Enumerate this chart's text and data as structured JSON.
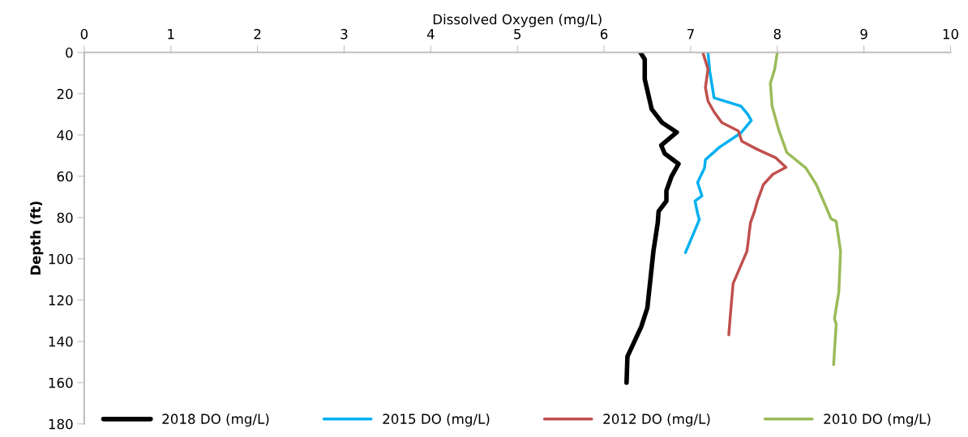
{
  "chart_data": {
    "type": "line",
    "xlabel": "Dissolved Oxygen (mg/L)",
    "ylabel": "Depth (ft)",
    "xlim": [
      0,
      10
    ],
    "xticks": [
      0,
      1,
      2,
      3,
      4,
      5,
      6,
      7,
      8,
      9,
      10
    ],
    "ylim": [
      180,
      0
    ],
    "yticks": [
      0,
      20,
      40,
      60,
      80,
      100,
      120,
      140,
      160,
      180
    ],
    "grid": false,
    "legend": "bottom",
    "marker": "none",
    "line_style": "solid",
    "series": [
      {
        "name": "2018 DO (mg/L)",
        "color": "#000000",
        "x": [
          6.42,
          6.47,
          6.47,
          6.52,
          6.55,
          6.67,
          6.84,
          6.66,
          6.7,
          6.86,
          6.78,
          6.72,
          6.72,
          6.63,
          6.62,
          6.57,
          6.5,
          6.43,
          6.27,
          6.26
        ],
        "values": [
          0,
          3.3,
          13,
          22,
          27.5,
          34,
          38.7,
          45,
          49,
          54,
          60,
          67,
          72,
          77,
          82.6,
          96.3,
          123.8,
          132.9,
          147.4,
          160
        ]
      },
      {
        "name": "2015 DO (mg/L)",
        "color": "#00b0f0",
        "x": [
          7.2,
          7.22,
          7.27,
          7.58,
          7.66,
          7.7,
          7.58,
          7.33,
          7.17,
          7.16,
          7.08,
          7.13,
          7.05,
          7.08,
          7.1,
          6.94
        ],
        "values": [
          0,
          9,
          22,
          26,
          30,
          33,
          39,
          46,
          52,
          56,
          63,
          69.5,
          72,
          78,
          81,
          97
        ]
      },
      {
        "name": "2012 DO (mg/L)",
        "color": "#c0504d",
        "x": [
          7.14,
          7.2,
          7.17,
          7.2,
          7.27,
          7.36,
          7.55,
          7.59,
          7.77,
          7.98,
          8.1,
          7.95,
          7.84,
          7.77,
          7.74,
          7.69,
          7.65,
          7.49,
          7.46,
          7.44
        ],
        "values": [
          0,
          8,
          17,
          23.6,
          28.8,
          34,
          38,
          43,
          47,
          51,
          55.7,
          59,
          64,
          72,
          76.6,
          82.6,
          96.3,
          112,
          126.4,
          136.8
        ]
      },
      {
        "name": "2010 DO (mg/L)",
        "color": "#9bbb59",
        "x": [
          8.0,
          7.97,
          7.92,
          7.94,
          8.02,
          8.11,
          8.33,
          8.45,
          8.58,
          8.62,
          8.68,
          8.73,
          8.71,
          8.66,
          8.68,
          8.65
        ],
        "values": [
          0,
          8,
          15,
          26,
          38,
          48.5,
          56,
          64,
          76.6,
          80.6,
          81.9,
          96.3,
          116,
          129,
          131.6,
          151.3
        ]
      }
    ]
  }
}
